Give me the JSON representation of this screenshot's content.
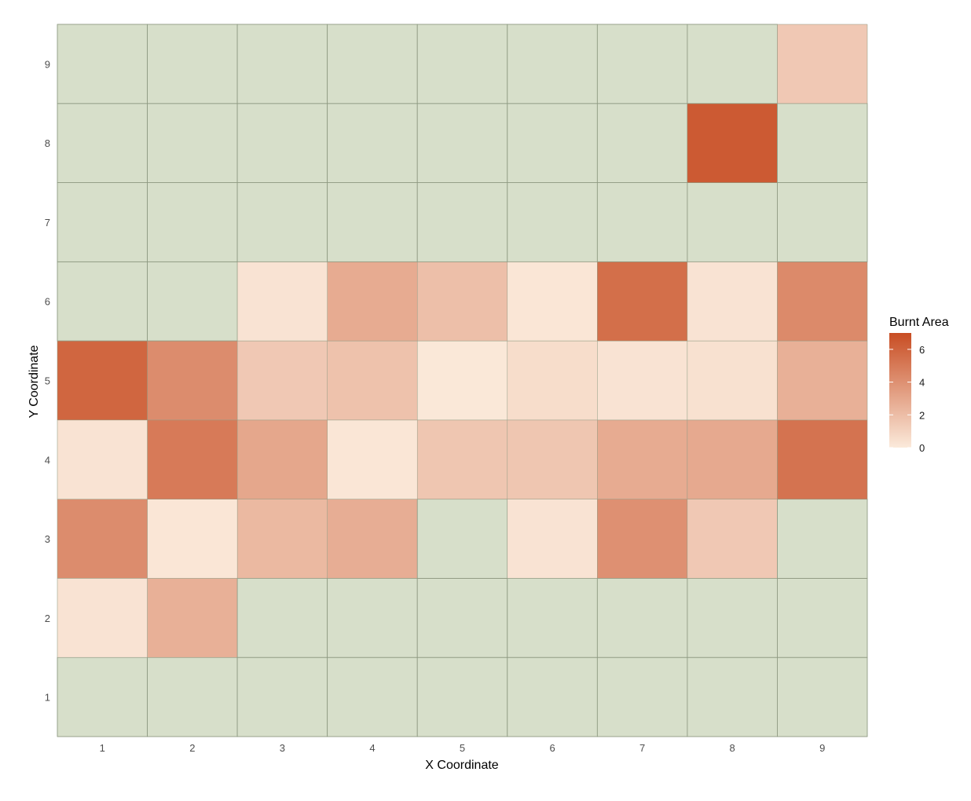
{
  "chart_data": {
    "type": "heatmap",
    "xlabel": "X Coordinate",
    "ylabel": "Y Coordinate",
    "x": [
      1,
      2,
      3,
      4,
      5,
      6,
      7,
      8,
      9
    ],
    "y": [
      1,
      2,
      3,
      4,
      5,
      6,
      7,
      8,
      9
    ],
    "xlim": [
      0.5,
      9.5
    ],
    "ylim": [
      0.5,
      9.5
    ],
    "no_data_color": "#d7dfca",
    "grid_line_color": "#8e9a82",
    "legend": {
      "title": "Burnt Area",
      "position": "right",
      "min": 0,
      "max": 7,
      "ticks": [
        0,
        2,
        4,
        6
      ],
      "color_low": "#fbeadb",
      "color_high": "#c84d23"
    },
    "cells": [
      {
        "x": 1,
        "y": 2,
        "value": 0.3
      },
      {
        "x": 2,
        "y": 2,
        "value": 2.6
      },
      {
        "x": 1,
        "y": 3,
        "value": 4.2
      },
      {
        "x": 2,
        "y": 3,
        "value": 0.2
      },
      {
        "x": 3,
        "y": 3,
        "value": 2.2
      },
      {
        "x": 4,
        "y": 3,
        "value": 2.7
      },
      {
        "x": 6,
        "y": 3,
        "value": 0.3
      },
      {
        "x": 7,
        "y": 3,
        "value": 4.0
      },
      {
        "x": 8,
        "y": 3,
        "value": 1.5
      },
      {
        "x": 1,
        "y": 4,
        "value": 0.3
      },
      {
        "x": 2,
        "y": 4,
        "value": 5.0
      },
      {
        "x": 3,
        "y": 4,
        "value": 3.0
      },
      {
        "x": 4,
        "y": 4,
        "value": 0.2
      },
      {
        "x": 5,
        "y": 4,
        "value": 1.6
      },
      {
        "x": 6,
        "y": 4,
        "value": 1.6
      },
      {
        "x": 7,
        "y": 4,
        "value": 2.8
      },
      {
        "x": 8,
        "y": 4,
        "value": 2.9
      },
      {
        "x": 9,
        "y": 4,
        "value": 5.3
      },
      {
        "x": 1,
        "y": 5,
        "value": 5.9
      },
      {
        "x": 2,
        "y": 5,
        "value": 4.2
      },
      {
        "x": 3,
        "y": 5,
        "value": 1.5
      },
      {
        "x": 4,
        "y": 5,
        "value": 1.8
      },
      {
        "x": 5,
        "y": 5,
        "value": 0.1
      },
      {
        "x": 6,
        "y": 5,
        "value": 0.6
      },
      {
        "x": 7,
        "y": 5,
        "value": 0.3
      },
      {
        "x": 8,
        "y": 5,
        "value": 0.4
      },
      {
        "x": 9,
        "y": 5,
        "value": 2.6
      },
      {
        "x": 3,
        "y": 6,
        "value": 0.3
      },
      {
        "x": 4,
        "y": 6,
        "value": 2.8
      },
      {
        "x": 5,
        "y": 6,
        "value": 1.9
      },
      {
        "x": 6,
        "y": 6,
        "value": 0.2
      },
      {
        "x": 7,
        "y": 6,
        "value": 5.5
      },
      {
        "x": 8,
        "y": 6,
        "value": 0.3
      },
      {
        "x": 9,
        "y": 6,
        "value": 4.3
      },
      {
        "x": 8,
        "y": 8,
        "value": 6.4
      },
      {
        "x": 9,
        "y": 9,
        "value": 1.5
      }
    ]
  }
}
